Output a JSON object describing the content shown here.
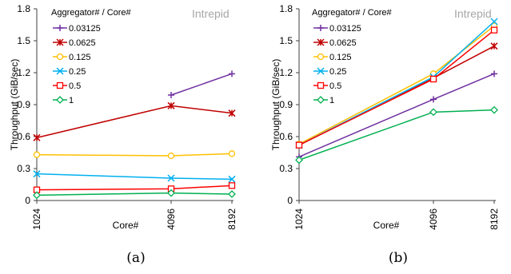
{
  "chart_data": [
    {
      "type": "line",
      "caption": "(a)",
      "annotation": "Intrepid",
      "legend_title": "Aggregator# / Core#",
      "legend_position": "top-left",
      "xlabel": "Core#",
      "ylabel": "Throughput (GiB/sec)",
      "x_ticks": [
        "1024",
        "4096",
        "8192"
      ],
      "ylim": [
        0,
        1.8
      ],
      "y_ticks": [
        "0",
        "0.3",
        "0.6",
        "0.9",
        "1.2",
        "1.5",
        "1.8"
      ],
      "grid": false,
      "series": [
        {
          "name": "0.03125",
          "color": "#7030a0",
          "marker": "plus",
          "x": [
            "4096",
            "8192"
          ],
          "values": [
            0.99,
            1.19
          ]
        },
        {
          "name": "0.0625",
          "color": "#c00000",
          "marker": "asterisk",
          "x": [
            "1024",
            "4096",
            "8192"
          ],
          "values": [
            0.59,
            0.89,
            0.82
          ]
        },
        {
          "name": "0.125",
          "color": "#ffc000",
          "marker": "circle",
          "x": [
            "1024",
            "4096",
            "8192"
          ],
          "values": [
            0.43,
            0.42,
            0.44
          ]
        },
        {
          "name": "0.25",
          "color": "#00b0f0",
          "marker": "x",
          "x": [
            "1024",
            "4096",
            "8192"
          ],
          "values": [
            0.25,
            0.21,
            0.2
          ]
        },
        {
          "name": "0.5",
          "color": "#ff0000",
          "marker": "square",
          "x": [
            "1024",
            "4096",
            "8192"
          ],
          "values": [
            0.1,
            0.11,
            0.14
          ]
        },
        {
          "name": "1",
          "color": "#00b050",
          "marker": "diamond",
          "x": [
            "1024",
            "4096",
            "8192"
          ],
          "values": [
            0.05,
            0.07,
            0.06
          ]
        }
      ]
    },
    {
      "type": "line",
      "caption": "(b)",
      "annotation": "Intrepid",
      "legend_title": "Aggregator# / Core#",
      "legend_position": "top-left",
      "xlabel": "Core#",
      "ylabel": "Throughput (GiB/sec)",
      "x_ticks": [
        "1024",
        "4096",
        "8192"
      ],
      "ylim": [
        0,
        1.8
      ],
      "y_ticks": [
        "0",
        "0.3",
        "0.6",
        "0.9",
        "1.2",
        "1.5",
        "1.8"
      ],
      "grid": false,
      "series": [
        {
          "name": "0.03125",
          "color": "#7030a0",
          "marker": "plus",
          "x": [
            "1024",
            "4096",
            "8192"
          ],
          "values": [
            0.41,
            0.95,
            1.19
          ]
        },
        {
          "name": "0.0625",
          "color": "#c00000",
          "marker": "asterisk",
          "x": [
            "1024",
            "4096",
            "8192"
          ],
          "values": [
            0.52,
            1.15,
            1.45
          ]
        },
        {
          "name": "0.125",
          "color": "#ffc000",
          "marker": "circle",
          "x": [
            "1024",
            "4096",
            "8192"
          ],
          "values": [
            0.53,
            1.19,
            1.64
          ]
        },
        {
          "name": "0.25",
          "color": "#00b0f0",
          "marker": "x",
          "x": [
            "1024",
            "4096",
            "8192"
          ],
          "values": [
            0.52,
            1.16,
            1.68
          ]
        },
        {
          "name": "0.5",
          "color": "#ff0000",
          "marker": "square",
          "x": [
            "1024",
            "4096",
            "8192"
          ],
          "values": [
            0.52,
            1.14,
            1.6
          ]
        },
        {
          "name": "1",
          "color": "#00b050",
          "marker": "diamond",
          "x": [
            "1024",
            "4096",
            "8192"
          ],
          "values": [
            0.38,
            0.83,
            0.85
          ]
        }
      ]
    }
  ]
}
